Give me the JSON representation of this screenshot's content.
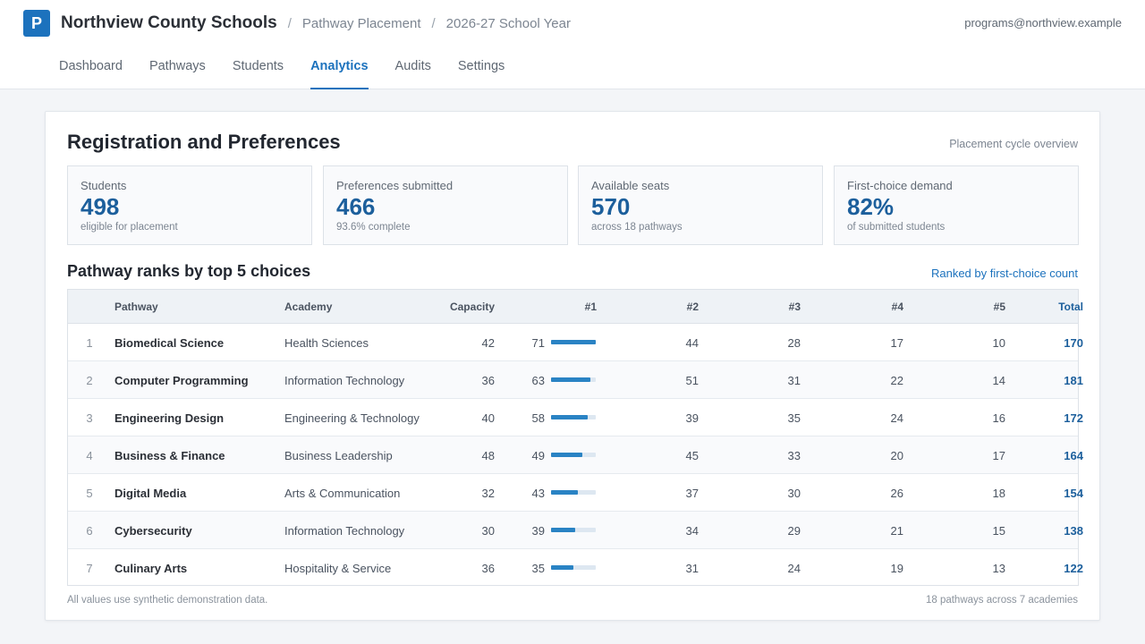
{
  "header": {
    "logo_letter": "P",
    "org_name": "Northview County Schools",
    "breadcrumbs": [
      "Pathway Placement",
      "2026-27 School Year"
    ],
    "user_email": "programs@northview.example"
  },
  "nav": {
    "items": [
      "Dashboard",
      "Pathways",
      "Students",
      "Analytics",
      "Audits",
      "Settings"
    ],
    "active": "Analytics"
  },
  "card": {
    "title": "Registration and Preferences",
    "caption": "Placement cycle overview"
  },
  "stats": [
    {
      "label": "Students",
      "value": "498",
      "sub": "eligible for placement"
    },
    {
      "label": "Preferences submitted",
      "value": "466",
      "sub": "93.6% complete"
    },
    {
      "label": "Available seats",
      "value": "570",
      "sub": "across 18 pathways"
    },
    {
      "label": "First-choice demand",
      "value": "82%",
      "sub": "of submitted students"
    }
  ],
  "table": {
    "title": "Pathway ranks by top 5 choices",
    "sort_link": "Ranked by first-choice count",
    "columns": [
      "",
      "Pathway",
      "Academy",
      "Capacity",
      "#1",
      "#2",
      "#3",
      "#4",
      "#5",
      "Total"
    ],
    "first_choice_bar_max": 71,
    "rows": [
      {
        "rank": "1",
        "pathway": "Biomedical Science",
        "academy": "Health Sciences",
        "capacity": "42",
        "c1": "71",
        "c2": "44",
        "c3": "28",
        "c4": "17",
        "c5": "10",
        "total": "170",
        "c1_fraction": 1.0
      },
      {
        "rank": "2",
        "pathway": "Computer Programming",
        "academy": "Information Technology",
        "capacity": "36",
        "c1": "63",
        "c2": "51",
        "c3": "31",
        "c4": "22",
        "c5": "14",
        "total": "181",
        "c1_fraction": 0.887
      },
      {
        "rank": "3",
        "pathway": "Engineering Design",
        "academy": "Engineering & Technology",
        "capacity": "40",
        "c1": "58",
        "c2": "39",
        "c3": "35",
        "c4": "24",
        "c5": "16",
        "total": "172",
        "c1_fraction": 0.817
      },
      {
        "rank": "4",
        "pathway": "Business & Finance",
        "academy": "Business Leadership",
        "capacity": "48",
        "c1": "49",
        "c2": "45",
        "c3": "33",
        "c4": "20",
        "c5": "17",
        "total": "164",
        "c1_fraction": 0.69
      },
      {
        "rank": "5",
        "pathway": "Digital Media",
        "academy": "Arts & Communication",
        "capacity": "32",
        "c1": "43",
        "c2": "37",
        "c3": "30",
        "c4": "26",
        "c5": "18",
        "total": "154",
        "c1_fraction": 0.606
      },
      {
        "rank": "6",
        "pathway": "Cybersecurity",
        "academy": "Information Technology",
        "capacity": "30",
        "c1": "39",
        "c2": "34",
        "c3": "29",
        "c4": "21",
        "c5": "15",
        "total": "138",
        "c1_fraction": 0.549
      },
      {
        "rank": "7",
        "pathway": "Culinary Arts",
        "academy": "Hospitality & Service",
        "capacity": "36",
        "c1": "35",
        "c2": "31",
        "c3": "24",
        "c4": "19",
        "c5": "13",
        "total": "122",
        "c1_fraction": 0.493
      }
    ]
  },
  "footer": {
    "note": "All values use synthetic demonstration data.",
    "summary": "18 pathways across 7 academies"
  },
  "colors": {
    "accent": "#1c72bd",
    "stat_value": "#1c5f9c",
    "bar": "#2a83c4"
  }
}
